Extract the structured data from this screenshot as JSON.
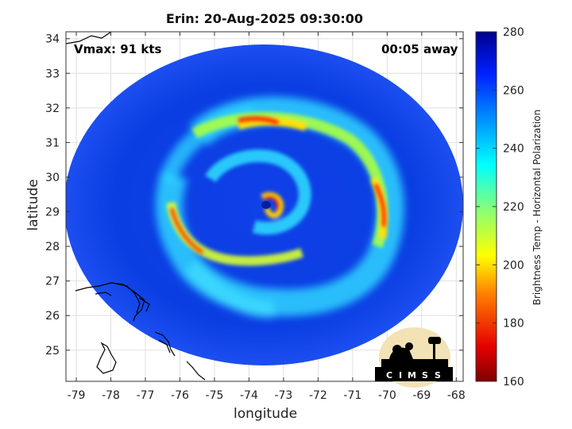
{
  "title": "Erin: 20-Aug-2025 09:30:00",
  "vmax_label": "Vmax: 91 kts",
  "away_label": "00:05 away",
  "xlabel": "longitude",
  "ylabel": "latitude",
  "colorbar": {
    "label": "Brightness Temp - Horizontal Polarization",
    "min": 160,
    "max": 280,
    "ticks": [
      "160",
      "180",
      "200",
      "220",
      "240",
      "260",
      "280"
    ]
  },
  "logo": {
    "text": "CIMSS",
    "letters": [
      "C",
      "I",
      "M",
      "S",
      "S"
    ]
  },
  "map": {
    "x_ticks": [
      "-79",
      "-78",
      "-77",
      "-76",
      "-75",
      "-74",
      "-73",
      "-72",
      "-71",
      "-70",
      "-69",
      "-68"
    ],
    "y_ticks": [
      "25",
      "26",
      "27",
      "28",
      "29",
      "30",
      "31",
      "32",
      "33",
      "34"
    ],
    "xlim": [
      -79.3,
      -67.8
    ],
    "ylim": [
      24.1,
      34.2
    ],
    "grid": true,
    "swath_center": {
      "lon": -73.3,
      "lat": 29.05
    },
    "eye": {
      "lon": -73.5,
      "lat": 29.0
    },
    "colors": {
      "background_cold": "#0a40e6",
      "spiral_warm": "#ff2a00",
      "coast": "#000000"
    }
  }
}
